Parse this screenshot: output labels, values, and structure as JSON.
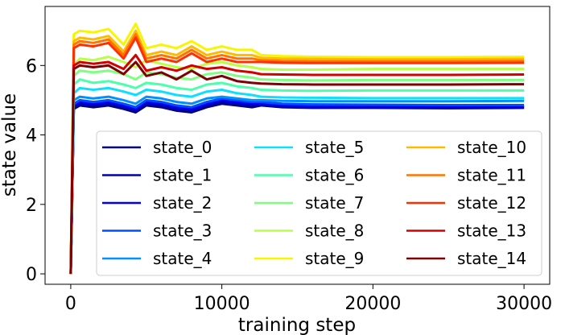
{
  "chart_data": {
    "type": "line",
    "xlabel": "training step",
    "ylabel": "state value",
    "xlim": [
      -1700,
      31700
    ],
    "ylim": [
      -0.3,
      7.7
    ],
    "xticks": [
      0,
      10000,
      20000,
      30000
    ],
    "xtick_labels": [
      "0",
      "10000",
      "20000",
      "30000"
    ],
    "yticks": [
      0,
      2,
      4,
      6
    ],
    "ytick_labels": [
      "0",
      "2",
      "4",
      "6"
    ],
    "grid": false,
    "legend": {
      "placement": "lower-right",
      "columns": 3
    },
    "x": [
      0,
      200,
      600,
      1500,
      2500,
      3500,
      4300,
      5000,
      6000,
      7000,
      8000,
      9000,
      10000,
      11000,
      12000,
      12600,
      14000,
      16000,
      20000,
      25000,
      30000
    ],
    "series": [
      {
        "name": "state_0",
        "color": "#00007f",
        "values": [
          0,
          4.75,
          4.85,
          4.8,
          4.85,
          4.75,
          4.65,
          4.85,
          4.8,
          4.7,
          4.65,
          4.8,
          4.9,
          4.85,
          4.8,
          4.85,
          4.8,
          4.78,
          4.78,
          4.77,
          4.78
        ]
      },
      {
        "name": "state_1",
        "color": "#0000b2",
        "values": [
          0,
          4.8,
          4.9,
          4.85,
          4.9,
          4.8,
          4.7,
          4.9,
          4.85,
          4.75,
          4.7,
          4.85,
          4.95,
          4.9,
          4.85,
          4.88,
          4.82,
          4.8,
          4.8,
          4.79,
          4.8
        ]
      },
      {
        "name": "state_2",
        "color": "#0000f1",
        "values": [
          0,
          4.85,
          4.95,
          4.9,
          4.95,
          4.85,
          4.75,
          4.95,
          4.9,
          4.8,
          4.75,
          4.9,
          5.0,
          4.95,
          4.9,
          4.9,
          4.85,
          4.83,
          4.82,
          4.82,
          4.82
        ]
      },
      {
        "name": "state_3",
        "color": "#004cff",
        "values": [
          0,
          4.9,
          5.0,
          4.95,
          5.0,
          4.9,
          4.8,
          5.0,
          4.95,
          4.85,
          4.8,
          4.95,
          5.05,
          5.0,
          4.95,
          4.95,
          4.9,
          4.88,
          4.87,
          4.86,
          4.86
        ]
      },
      {
        "name": "state_4",
        "color": "#0090ff",
        "values": [
          0,
          5.0,
          5.1,
          5.05,
          5.1,
          5.0,
          4.9,
          5.1,
          5.05,
          4.95,
          4.9,
          5.05,
          5.1,
          5.05,
          5.0,
          5.0,
          4.98,
          4.97,
          4.97,
          4.97,
          4.98
        ]
      },
      {
        "name": "state_5",
        "color": "#0fdeff",
        "values": [
          0,
          5.2,
          5.35,
          5.3,
          5.35,
          5.25,
          5.15,
          5.3,
          5.25,
          5.15,
          5.1,
          5.25,
          5.3,
          5.2,
          5.15,
          5.1,
          5.08,
          5.07,
          5.06,
          5.06,
          5.06
        ]
      },
      {
        "name": "state_6",
        "color": "#4cffaa",
        "values": [
          0,
          5.45,
          5.6,
          5.5,
          5.55,
          5.45,
          5.35,
          5.5,
          5.45,
          5.35,
          5.3,
          5.45,
          5.5,
          5.4,
          5.35,
          5.3,
          5.28,
          5.27,
          5.28,
          5.28,
          5.28
        ]
      },
      {
        "name": "state_7",
        "color": "#7fff7f",
        "values": [
          0,
          5.7,
          5.85,
          5.8,
          5.85,
          5.75,
          5.6,
          5.8,
          5.75,
          5.65,
          5.6,
          5.75,
          5.8,
          5.7,
          5.65,
          5.6,
          5.58,
          5.57,
          5.58,
          5.58,
          5.58
        ]
      },
      {
        "name": "state_8",
        "color": "#b8ff46",
        "values": [
          0,
          6.0,
          6.2,
          6.15,
          6.25,
          6.1,
          5.95,
          6.15,
          6.05,
          5.95,
          5.9,
          6.05,
          6.1,
          6.0,
          5.95,
          5.9,
          5.88,
          5.88,
          5.9,
          5.9,
          5.9
        ]
      },
      {
        "name": "state_9",
        "color": "#f8f500",
        "values": [
          0,
          6.9,
          7.0,
          6.95,
          7.05,
          6.6,
          7.2,
          6.5,
          6.6,
          6.5,
          6.7,
          6.45,
          6.55,
          6.45,
          6.45,
          6.3,
          6.27,
          6.25,
          6.24,
          6.24,
          6.25
        ]
      },
      {
        "name": "state_10",
        "color": "#ffb900",
        "values": [
          0,
          6.7,
          6.8,
          6.75,
          6.85,
          6.4,
          7.0,
          6.3,
          6.4,
          6.3,
          6.55,
          6.3,
          6.4,
          6.3,
          6.3,
          6.22,
          6.2,
          6.19,
          6.18,
          6.18,
          6.19
        ]
      },
      {
        "name": "state_11",
        "color": "#ff7300",
        "values": [
          0,
          6.6,
          6.7,
          6.65,
          6.75,
          6.3,
          6.9,
          6.2,
          6.3,
          6.2,
          6.45,
          6.2,
          6.3,
          6.2,
          6.2,
          6.15,
          6.13,
          6.12,
          6.12,
          6.12,
          6.13
        ]
      },
      {
        "name": "state_12",
        "color": "#ff3000",
        "values": [
          0,
          6.5,
          6.6,
          6.55,
          6.65,
          6.2,
          6.8,
          6.1,
          6.2,
          6.1,
          6.35,
          6.1,
          6.2,
          6.1,
          6.1,
          6.1,
          6.08,
          6.07,
          6.07,
          6.07,
          6.08
        ]
      },
      {
        "name": "state_13",
        "color": "#d40000",
        "values": [
          0,
          6.0,
          6.1,
          6.05,
          6.1,
          5.9,
          6.3,
          5.85,
          5.95,
          5.85,
          6.0,
          5.9,
          5.95,
          5.85,
          5.8,
          5.75,
          5.74,
          5.73,
          5.73,
          5.73,
          5.74
        ]
      },
      {
        "name": "state_14",
        "color": "#7f0000",
        "values": [
          0,
          5.9,
          6.0,
          5.95,
          6.0,
          5.75,
          6.1,
          5.7,
          5.8,
          5.6,
          5.85,
          5.6,
          5.7,
          5.55,
          5.5,
          5.48,
          5.46,
          5.45,
          5.45,
          5.45,
          5.46
        ]
      }
    ]
  }
}
